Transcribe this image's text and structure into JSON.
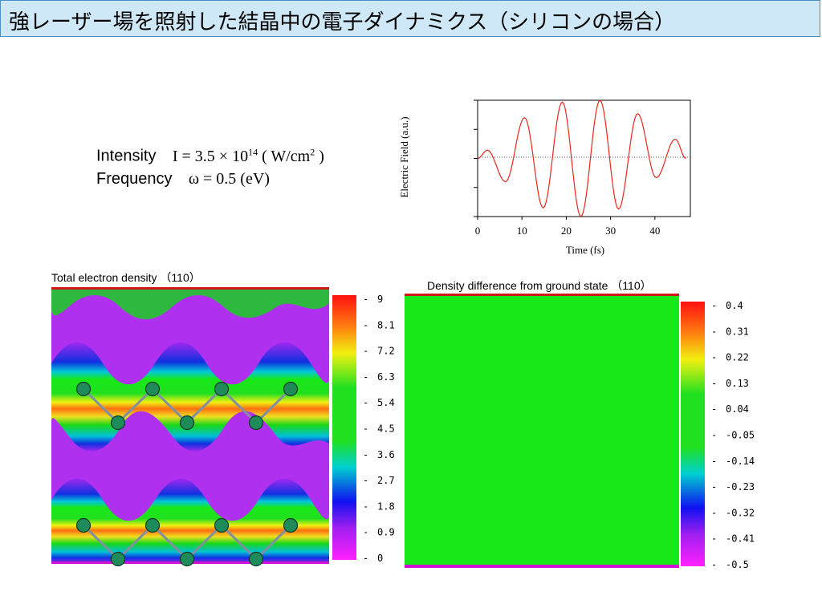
{
  "title": "強レーザー場を照射した結晶中の電子ダイナミクス（シリコンの場合）",
  "params": {
    "intensity_label": "Intensity",
    "intensity_value_prefix": "I = 3.5 × 10",
    "intensity_exponent": "14",
    "intensity_unit_prefix": " ( W/cm",
    "intensity_unit_exponent": "2",
    "intensity_unit_suffix": " )",
    "frequency_label": "Frequency",
    "frequency_value": "ω = 0.5 (eV)"
  },
  "field_chart": {
    "ylabel": "Electric Field (a.u.)",
    "xlabel": "Time (fs)",
    "x_ticks": [
      "0",
      "10",
      "20",
      "30",
      "40"
    ],
    "line_color": "#e8261c"
  },
  "chart_data": {
    "type": "line",
    "title": "",
    "xlabel": "Time (fs)",
    "ylabel": "Electric Field (a.u.)",
    "xlim": [
      0,
      48
    ],
    "ylim": [
      -1,
      1
    ],
    "x_ticks": [
      0,
      10,
      20,
      30,
      40
    ],
    "grid": false,
    "series": [
      {
        "color": "#e8261c",
        "x": [
          0,
          2.2,
          6.3,
          10.6,
          14.8,
          19.1,
          23.3,
          27.6,
          31.8,
          36.1,
          40.3,
          44.6,
          47
        ],
        "y": [
          0.0,
          0.14,
          -0.4,
          0.7,
          -0.85,
          0.97,
          -1.0,
          1.0,
          -0.87,
          0.77,
          -0.33,
          0.33,
          0.0
        ]
      }
    ]
  },
  "left_panel": {
    "label": "Total electron density （110）",
    "colorbar_ticks": [
      "9",
      "8.1",
      "7.2",
      "6.3",
      "5.4",
      "4.5",
      "3.6",
      "2.7",
      "1.8",
      "0.9",
      "0"
    ]
  },
  "right_panel": {
    "label": "Density difference from ground state （110）",
    "colorbar_ticks": [
      "0.4",
      "0.31",
      "0.22",
      "0.13",
      "0.04",
      "-0.05",
      "-0.14",
      "-0.23",
      "-0.32",
      "-0.41",
      "-0.5"
    ]
  },
  "colors": {
    "title_bg": "#cfe8f7",
    "title_border": "#4a90c8",
    "uniform_field": "#18e818",
    "atom": "#1f8a5a"
  }
}
